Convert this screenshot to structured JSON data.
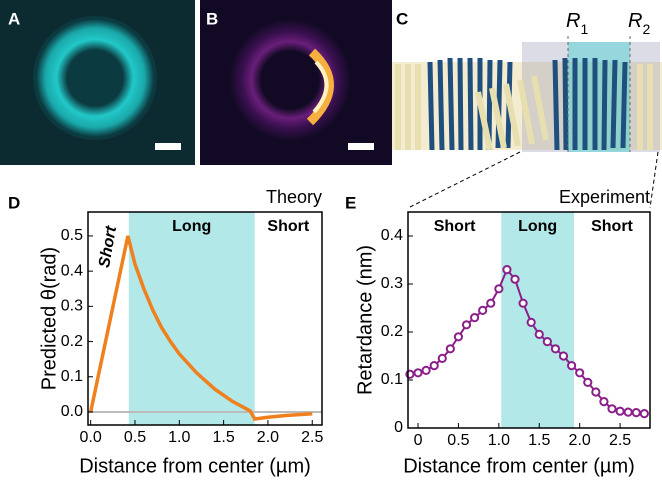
{
  "figure": {
    "panel_labels": [
      "A",
      "B",
      "C"
    ],
    "r1": {
      "symbol": "R",
      "sub": "1"
    },
    "r2": {
      "symbol": "R",
      "sub": "2"
    }
  },
  "chart_data": [
    {
      "type": "line",
      "panel": "D",
      "title": "Theory",
      "xlabel": "Distance from center (µm)",
      "ylabel": "Predicted θ(rad)",
      "xlim": [
        -0.03,
        2.61
      ],
      "ylim": [
        -0.037,
        0.568
      ],
      "xticks": [
        {
          "value": 0,
          "label": "0.0"
        },
        {
          "value": 0.5,
          "label": "0.5"
        },
        {
          "value": 1,
          "label": "1.0"
        },
        {
          "value": 1.5,
          "label": "1.5"
        },
        {
          "value": 2,
          "label": "2.0"
        },
        {
          "value": 2.5,
          "label": "2.5"
        }
      ],
      "yticks": [
        {
          "value": 0,
          "label": "0.0"
        },
        0.1,
        0.2,
        0.3,
        0.4,
        0.5
      ],
      "hline": 0,
      "shaded": [
        0.43,
        1.85
      ],
      "region_labels": [
        "Short",
        "Long",
        "Short"
      ],
      "series": [
        {
          "color": "#f07f1e",
          "x": [
            0,
            0.42,
            0.5,
            0.6,
            0.7,
            0.8,
            0.9,
            1.0,
            1.2,
            1.4,
            1.6,
            1.8,
            1.85,
            2.0,
            2.2,
            2.5
          ],
          "values": [
            0,
            0.5,
            0.42,
            0.35,
            0.29,
            0.24,
            0.2,
            0.165,
            0.11,
            0.065,
            0.03,
            0.003,
            -0.02,
            -0.015,
            -0.01,
            -0.005
          ]
        }
      ]
    },
    {
      "type": "line",
      "panel": "E",
      "title": "Experiment",
      "xlabel": "Distance from center (µm)",
      "ylabel": "Retardance (nm)",
      "xlim": [
        -0.124,
        2.87
      ],
      "ylim": [
        0,
        0.45
      ],
      "xticks": [
        0,
        0.5,
        {
          "value": 1,
          "label": "1.0"
        },
        1.5,
        {
          "value": 2,
          "label": "2.0"
        },
        2.5
      ],
      "yticks": [
        0,
        0.1,
        0.2,
        0.3,
        0.4
      ],
      "shaded": [
        1.03,
        1.93
      ],
      "region_labels": [
        "Short",
        "Long",
        "Short"
      ],
      "marker": "circle",
      "series": [
        {
          "color": "#8a1f8a",
          "x": [
            -0.1,
            0,
            0.1,
            0.2,
            0.3,
            0.4,
            0.5,
            0.6,
            0.7,
            0.8,
            0.9,
            1.0,
            1.1,
            1.2,
            1.3,
            1.4,
            1.5,
            1.6,
            1.7,
            1.8,
            1.9,
            2.0,
            2.1,
            2.2,
            2.3,
            2.4,
            2.5,
            2.6,
            2.7,
            2.8
          ],
          "values": [
            0.112,
            0.115,
            0.12,
            0.13,
            0.145,
            0.165,
            0.19,
            0.215,
            0.23,
            0.245,
            0.26,
            0.29,
            0.33,
            0.31,
            0.26,
            0.22,
            0.195,
            0.18,
            0.165,
            0.15,
            0.13,
            0.115,
            0.095,
            0.075,
            0.055,
            0.04,
            0.035,
            0.033,
            0.032,
            0.03
          ]
        }
      ]
    }
  ]
}
